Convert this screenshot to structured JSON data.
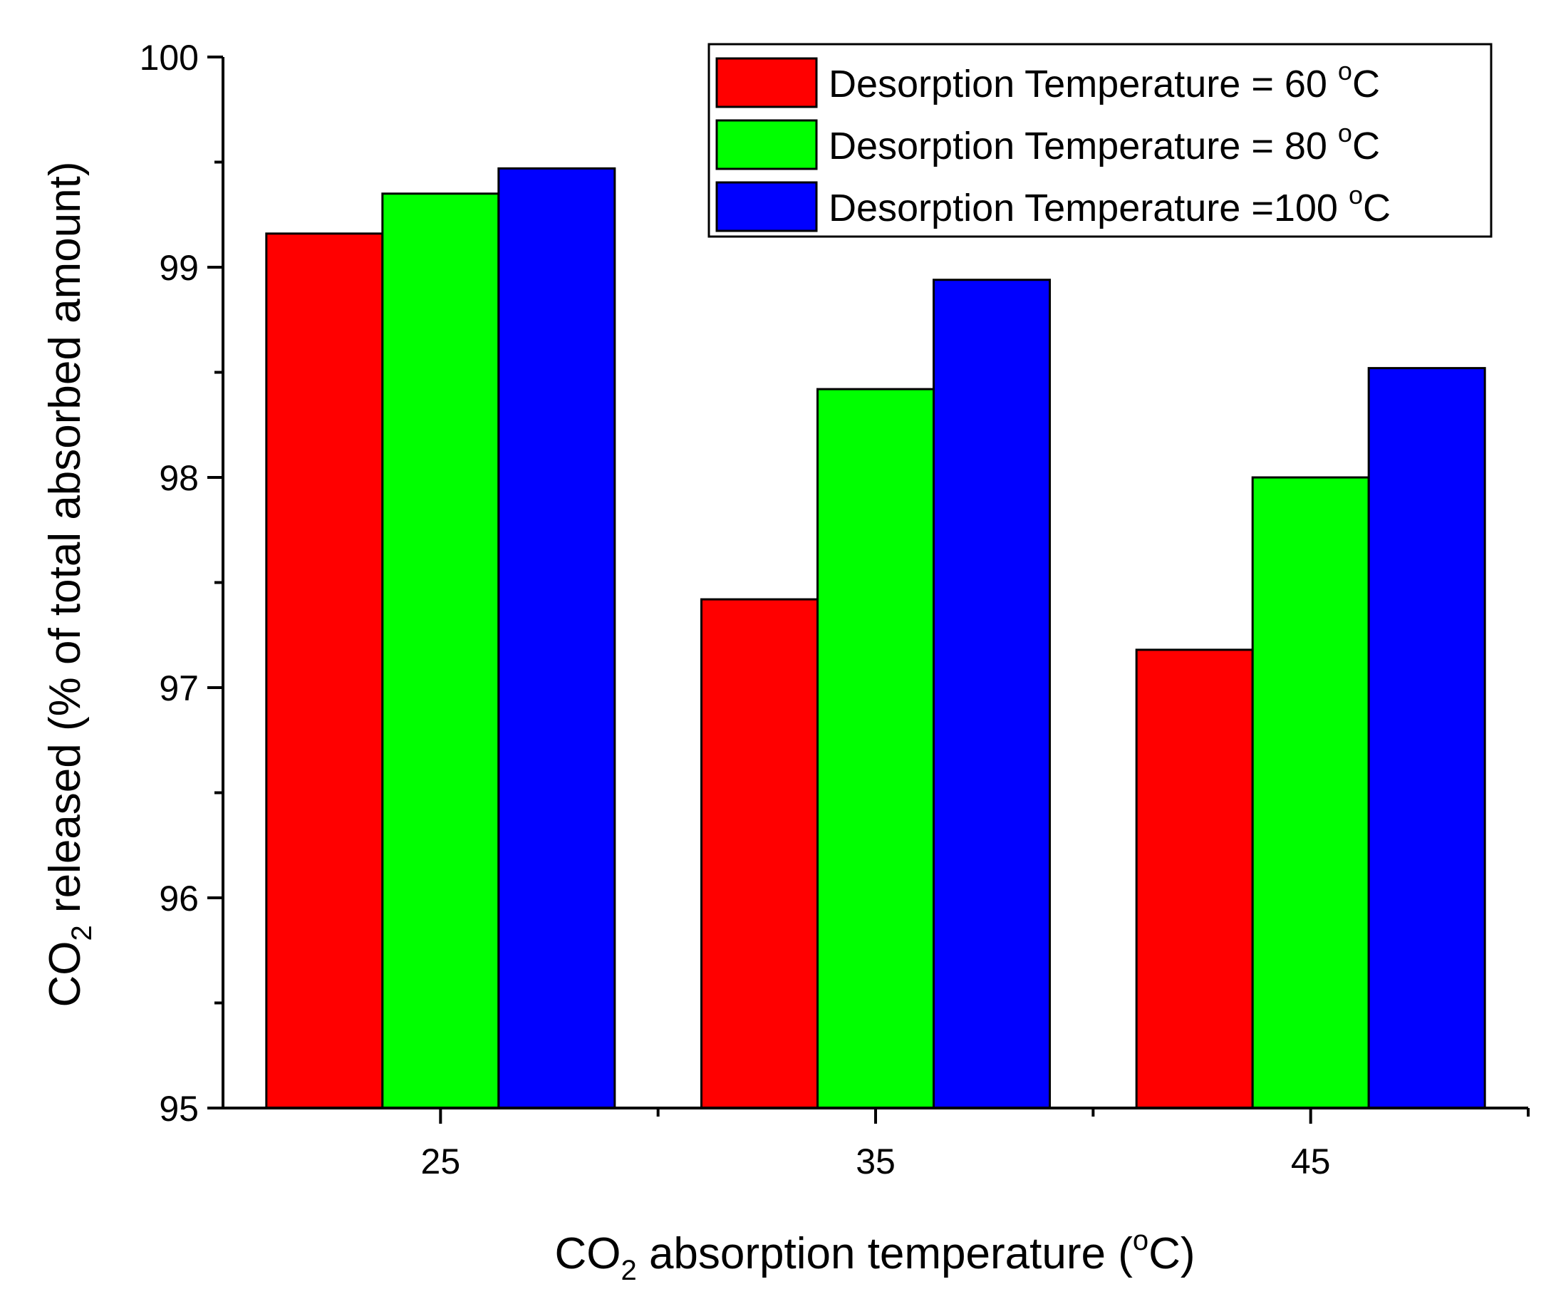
{
  "chart_data": {
    "type": "bar",
    "categories": [
      "25",
      "35",
      "45"
    ],
    "series": [
      {
        "name": "Desorption Temperature = 60 °C",
        "label_main": "Desorption Temperature = 60 ",
        "label_sup": "o",
        "label_tail": "C",
        "color": "#ff0000",
        "values": [
          99.16,
          97.42,
          97.18
        ]
      },
      {
        "name": "Desorption Temperature = 80 °C",
        "label_main": "Desorption Temperature = 80 ",
        "label_sup": "o",
        "label_tail": "C",
        "color": "#00ff00",
        "values": [
          99.35,
          98.42,
          98.0
        ]
      },
      {
        "name": "Desorption Temperature =100 °C",
        "label_main": "Desorption Temperature =100 ",
        "label_sup": "o",
        "label_tail": "C",
        "color": "#0000ff",
        "values": [
          99.47,
          98.94,
          98.52
        ]
      }
    ],
    "ylim": [
      95,
      100
    ],
    "yticks": [
      "95",
      "96",
      "97",
      "98",
      "99",
      "100"
    ],
    "xlabel": {
      "pre": "CO",
      "sub": "2",
      "mid": " absorption temperature (",
      "sup": "o",
      "post": "C)"
    },
    "ylabel": {
      "pre": "CO",
      "sub": "2",
      "post": " released (% of total absorbed amount)"
    },
    "legend_position": "top-right"
  }
}
